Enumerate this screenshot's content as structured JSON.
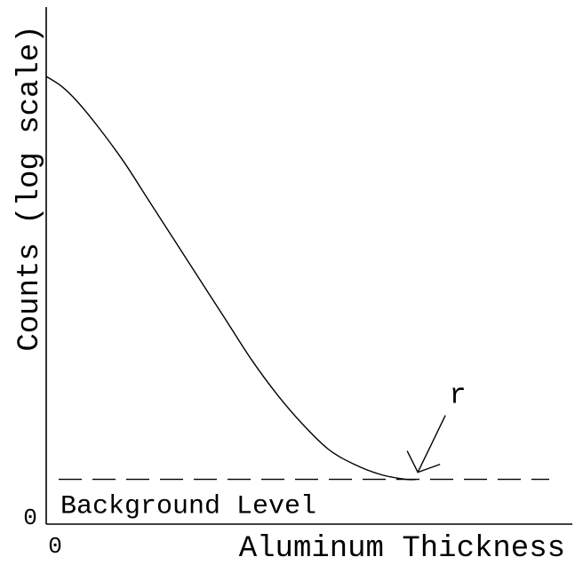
{
  "chart_data": {
    "type": "line",
    "title": "",
    "xlabel": "Aluminum Thickness",
    "ylabel": "Counts (log scale)",
    "x_ticks": [
      "0"
    ],
    "y_ticks": [
      "0"
    ],
    "y_scale": "log",
    "grid": false,
    "legend": "none",
    "xlim": [
      0,
      1
    ],
    "ylim": [
      0,
      1
    ],
    "series": [
      {
        "values": [
          [
            0.0,
            0.9
          ],
          [
            0.03,
            0.88
          ],
          [
            0.06,
            0.85
          ],
          [
            0.1,
            0.8
          ],
          [
            0.15,
            0.73
          ],
          [
            0.2,
            0.65
          ],
          [
            0.25,
            0.57
          ],
          [
            0.3,
            0.49
          ],
          [
            0.35,
            0.41
          ],
          [
            0.4,
            0.33
          ],
          [
            0.45,
            0.26
          ],
          [
            0.5,
            0.2
          ],
          [
            0.55,
            0.15
          ],
          [
            0.6,
            0.12
          ],
          [
            0.65,
            0.1
          ],
          [
            0.7,
            0.09
          ],
          [
            0.72,
            0.09
          ]
        ]
      }
    ],
    "reference_lines": [
      {
        "label": "Background Level",
        "y": 0.09,
        "style": "dashed"
      }
    ],
    "annotations": [
      {
        "text": "r",
        "x": 0.72,
        "y": 0.09,
        "arrow": true
      }
    ]
  },
  "colors": {
    "ink": "#000000",
    "background": "#ffffff"
  }
}
